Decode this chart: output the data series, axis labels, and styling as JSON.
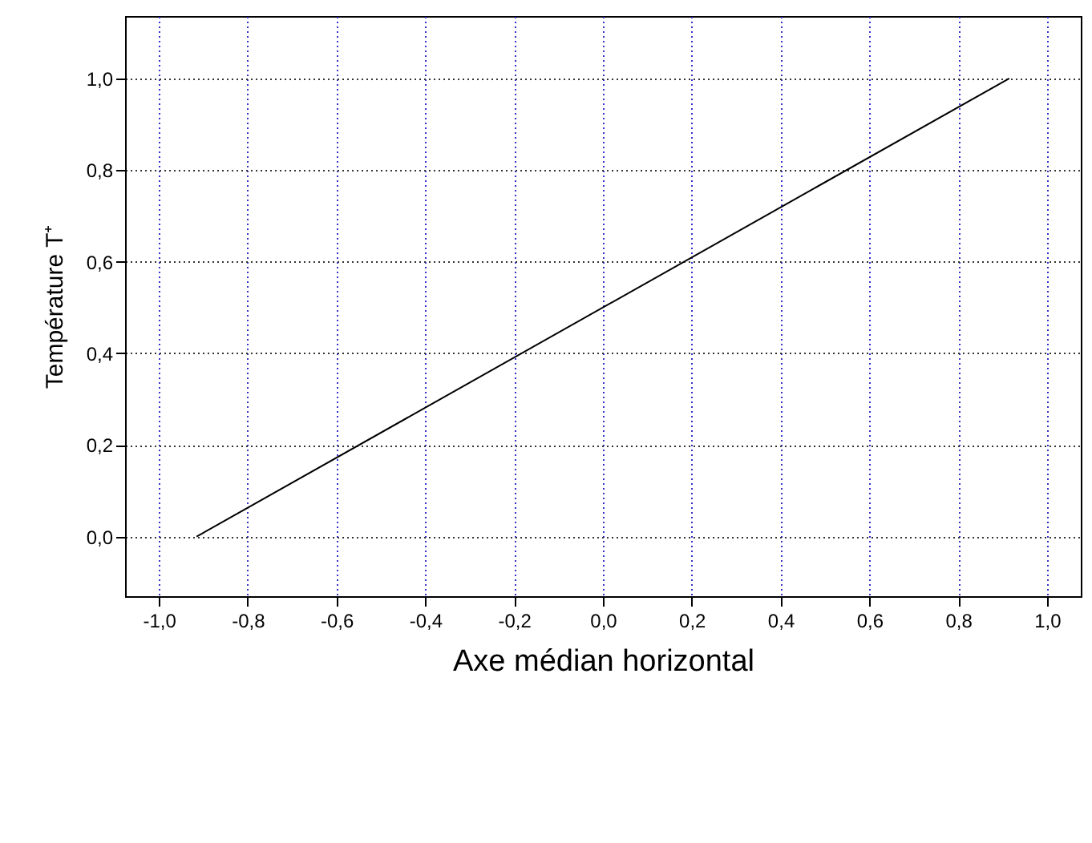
{
  "chart_data": {
    "type": "line",
    "xlabel": "Axe médian horizontal",
    "ylabel": "Température T⁺",
    "x": [
      -0.915,
      0.915
    ],
    "series": [
      {
        "color": "#000000",
        "values": [
          0,
          1
        ]
      }
    ],
    "xlim": [
      -1.076,
      1.076
    ],
    "ylim": [
      -0.13,
      1.136
    ],
    "xticks": [
      {
        "value": -1,
        "label": "-1,0"
      },
      {
        "value": -0.8,
        "label": "-0,8"
      },
      {
        "value": -0.6,
        "label": "-0,6"
      },
      {
        "value": -0.4,
        "label": "-0,4"
      },
      {
        "value": -0.2,
        "label": "-0,2"
      },
      {
        "value": 0,
        "label": "0,0"
      },
      {
        "value": 0.2,
        "label": "0,2"
      },
      {
        "value": 0.4,
        "label": "0,4"
      },
      {
        "value": 0.6,
        "label": "0,6"
      },
      {
        "value": 0.8,
        "label": "0,8"
      },
      {
        "value": 1,
        "label": "1,0"
      }
    ],
    "yticks": [
      {
        "value": 0,
        "label": "0,0"
      },
      {
        "value": 0.2,
        "label": "0,2"
      },
      {
        "value": 0.4,
        "label": "0,4"
      },
      {
        "value": 0.6,
        "label": "0,6"
      },
      {
        "value": 0.8,
        "label": "0,8"
      },
      {
        "value": 1,
        "label": "1,0"
      }
    ],
    "grid": true,
    "line_style": "solid"
  }
}
